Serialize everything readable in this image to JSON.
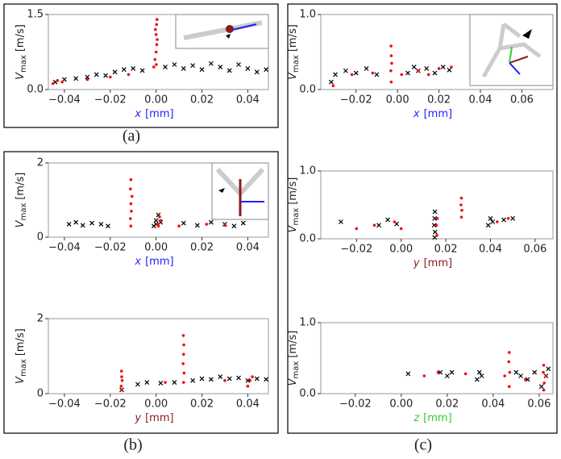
{
  "panel_labels": [
    "(a)",
    "(b)",
    "(c)"
  ],
  "chart_data": [
    {
      "type": "scatter",
      "ylabel_symbol": "V",
      "ylabel_subscript": "max",
      "ylabel_unit": "[m/s]",
      "xlabel_var": "x",
      "xlabel_unit": "[mm]",
      "xlabel_color": "#1f1fff",
      "xlim": [
        -0.047,
        0.049
      ],
      "ylim": [
        0,
        1.5
      ],
      "xticks": [
        {
          "value": -0.04,
          "label": "−0.04"
        },
        {
          "value": -0.02,
          "label": "−0.02"
        },
        {
          "value": 0,
          "label": "0.00"
        },
        {
          "value": 0.02,
          "label": "0.02"
        },
        {
          "value": 0.04,
          "label": "0.04"
        }
      ],
      "yticks": [
        {
          "value": 0,
          "label": "0.0"
        },
        {
          "value": 1.5,
          "label": "1.5"
        }
      ],
      "series": [
        {
          "color": "#000000",
          "marker": "x",
          "x": [
            -0.044,
            -0.04,
            -0.035,
            -0.03,
            -0.026,
            -0.022,
            -0.018,
            -0.014,
            -0.01,
            -0.006,
            0.004,
            0.008,
            0.012,
            0.016,
            0.02,
            0.024,
            0.028,
            0.032,
            0.036,
            0.04,
            0.044,
            0.048
          ],
          "values": [
            0.15,
            0.2,
            0.22,
            0.25,
            0.3,
            0.28,
            0.35,
            0.4,
            0.42,
            0.38,
            0.45,
            0.5,
            0.42,
            0.48,
            0.4,
            0.52,
            0.45,
            0.38,
            0.5,
            0.42,
            0.35,
            0.4
          ]
        },
        {
          "color": "#ee1111",
          "marker": "dot",
          "x": [
            -0.045,
            -0.043,
            -0.041,
            -0.03,
            -0.02,
            -0.012,
            -0.001,
            -0.0005,
            0,
            0.0003,
            0.0005,
            0,
            -0.0003,
            0.0002,
            0.0004,
            0.0001
          ],
          "values": [
            0.12,
            0.18,
            0.15,
            0.2,
            0.25,
            0.3,
            0.45,
            0.6,
            0.75,
            0.9,
            1.0,
            1.1,
            1.2,
            1.3,
            1.4,
            0.5
          ]
        }
      ]
    },
    {
      "type": "scatter",
      "ylabel_symbol": "V",
      "ylabel_subscript": "max",
      "ylabel_unit": "[m/s]",
      "xlabel_var": "x",
      "xlabel_unit": "[mm]",
      "xlabel_color": "#1f1fff",
      "xlim": [
        -0.047,
        0.049
      ],
      "ylim": [
        0,
        2
      ],
      "xticks": [
        {
          "value": -0.04,
          "label": "−0.04"
        },
        {
          "value": -0.02,
          "label": "−0.02"
        },
        {
          "value": 0,
          "label": "0.00"
        },
        {
          "value": 0.02,
          "label": "0.02"
        },
        {
          "value": 0.04,
          "label": "0.04"
        }
      ],
      "yticks": [
        0,
        2
      ],
      "series": [
        {
          "color": "#000000",
          "marker": "x",
          "x": [
            -0.038,
            -0.035,
            -0.032,
            -0.028,
            -0.024,
            -0.021,
            -0.001,
            0,
            0.001,
            0.002,
            0,
            0.012,
            0.018,
            0.024,
            0.03,
            0.034,
            0.038
          ],
          "values": [
            0.35,
            0.4,
            0.32,
            0.38,
            0.35,
            0.3,
            0.3,
            0.45,
            0.6,
            0.4,
            0.35,
            0.38,
            0.32,
            0.4,
            0.35,
            0.3,
            0.38
          ]
        },
        {
          "color": "#ee1111",
          "marker": "dot",
          "x": [
            -0.011,
            -0.0112,
            -0.0108,
            -0.011,
            -0.0105,
            -0.0112,
            -0.011,
            0.001,
            0.002,
            0.0015,
            0.0005,
            0.01,
            0.022,
            0.03
          ],
          "values": [
            0.3,
            0.5,
            0.7,
            0.9,
            1.1,
            1.3,
            1.55,
            0.3,
            0.45,
            0.55,
            0.35,
            0.3,
            0.35,
            0.32
          ]
        }
      ]
    },
    {
      "type": "scatter",
      "ylabel_symbol": "V",
      "ylabel_subscript": "max",
      "ylabel_unit": "[m/s]",
      "xlabel_var": "y",
      "xlabel_unit": "[mm]",
      "xlabel_color": "#8b1a1a",
      "xlim": [
        -0.047,
        0.049
      ],
      "ylim": [
        0,
        2
      ],
      "xticks": [
        {
          "value": -0.04,
          "label": "−0.04"
        },
        {
          "value": -0.02,
          "label": "−0.02"
        },
        {
          "value": 0,
          "label": "0.00"
        },
        {
          "value": 0.02,
          "label": "0.02"
        },
        {
          "value": 0.04,
          "label": "0.04"
        }
      ],
      "yticks": [
        0,
        2
      ],
      "series": [
        {
          "color": "#000000",
          "marker": "x",
          "x": [
            -0.015,
            -0.008,
            -0.004,
            0.002,
            0.008,
            0.016,
            0.02,
            0.024,
            0.028,
            0.032,
            0.036,
            0.04,
            0.044,
            0.048
          ],
          "values": [
            0.1,
            0.25,
            0.3,
            0.28,
            0.3,
            0.35,
            0.4,
            0.38,
            0.45,
            0.4,
            0.42,
            0.35,
            0.4,
            0.38
          ]
        },
        {
          "color": "#ee1111",
          "marker": "dot",
          "x": [
            -0.015,
            -0.0152,
            -0.0148,
            -0.015,
            -0.0151,
            0.012,
            0.0122,
            0.0118,
            0.012,
            0.0121,
            0.0119,
            0.004,
            0.03,
            0.04,
            0.041,
            0.042
          ],
          "values": [
            0.1,
            0.2,
            0.35,
            0.45,
            0.6,
            0.3,
            0.55,
            0.8,
            1.05,
            1.3,
            1.55,
            0.3,
            0.35,
            0.2,
            0.35,
            0.45
          ]
        }
      ]
    },
    {
      "type": "scatter",
      "ylabel_symbol": "V",
      "ylabel_subscript": "max",
      "ylabel_unit": "[m/s]",
      "xlabel_var": "x",
      "xlabel_unit": "[mm]",
      "xlabel_color": "#1f1fff",
      "xlim": [
        -0.037,
        0.075
      ],
      "ylim": [
        0,
        1.0
      ],
      "xticks": [
        {
          "value": -0.02,
          "label": "−0.02"
        },
        {
          "value": 0,
          "label": "0.00"
        },
        {
          "value": 0.02,
          "label": "0.02"
        },
        {
          "value": 0.04,
          "label": "0.04"
        },
        {
          "value": 0.06,
          "label": "0.06"
        }
      ],
      "yticks": [
        {
          "value": 0,
          "label": "0.0"
        },
        {
          "value": 1.0,
          "label": "1.0"
        }
      ],
      "series": [
        {
          "color": "#000000",
          "marker": "x",
          "x": [
            -0.032,
            -0.03,
            -0.025,
            -0.02,
            -0.015,
            -0.01,
            0.005,
            0.008,
            0.01,
            0.014,
            0.018,
            0.022,
            0.025
          ],
          "values": [
            0.1,
            0.2,
            0.25,
            0.22,
            0.28,
            0.2,
            0.22,
            0.3,
            0.25,
            0.28,
            0.22,
            0.3,
            0.26
          ]
        },
        {
          "color": "#ee1111",
          "marker": "dot",
          "x": [
            -0.031,
            -0.022,
            -0.012,
            -0.003,
            -0.0032,
            -0.0028,
            -0.003,
            -0.0031,
            0.002,
            0.01,
            0.015,
            0.02,
            0.026
          ],
          "values": [
            0.05,
            0.2,
            0.22,
            0.1,
            0.25,
            0.35,
            0.45,
            0.58,
            0.2,
            0.25,
            0.2,
            0.28,
            0.3
          ]
        }
      ]
    },
    {
      "type": "scatter",
      "ylabel_symbol": "V",
      "ylabel_subscript": "max",
      "ylabel_unit": "[m/s]",
      "xlabel_var": "y",
      "xlabel_unit": "[mm]",
      "xlabel_color": "#8b1a1a",
      "xlim": [
        -0.036,
        0.068
      ],
      "ylim": [
        0,
        1.0
      ],
      "xticks": [
        {
          "value": -0.02,
          "label": "−0.02"
        },
        {
          "value": 0,
          "label": "0.00"
        },
        {
          "value": 0.02,
          "label": "0.02"
        },
        {
          "value": 0.04,
          "label": "0.04"
        },
        {
          "value": 0.06,
          "label": "0.06"
        }
      ],
      "yticks": [
        {
          "value": 0,
          "label": "0.0"
        },
        {
          "value": 1.0,
          "label": "1.0"
        }
      ],
      "series": [
        {
          "color": "#000000",
          "marker": "x",
          "x": [
            -0.027,
            -0.01,
            -0.006,
            -0.002,
            0.015,
            0.0152,
            0.0148,
            0.015,
            0.0151,
            0.039,
            0.04,
            0.041,
            0.046,
            0.05
          ],
          "values": [
            0.25,
            0.2,
            0.28,
            0.22,
            0.02,
            0.1,
            0.2,
            0.3,
            0.4,
            0.2,
            0.3,
            0.25,
            0.28,
            0.3
          ]
        },
        {
          "color": "#ee1111",
          "marker": "dot",
          "x": [
            -0.02,
            -0.012,
            -0.003,
            0.0,
            0.016,
            0.0158,
            0.0162,
            0.027,
            0.0272,
            0.0268,
            0.027,
            0.043,
            0.048
          ],
          "values": [
            0.15,
            0.2,
            0.25,
            0.15,
            0.05,
            0.2,
            0.3,
            0.32,
            0.42,
            0.5,
            0.6,
            0.25,
            0.3
          ]
        }
      ]
    },
    {
      "type": "scatter",
      "ylabel_symbol": "V",
      "ylabel_subscript": "max",
      "ylabel_unit": "[m/s]",
      "xlabel_var": "z",
      "xlabel_unit": "[mm]",
      "xlabel_color": "#33cc33",
      "xlim": [
        -0.035,
        0.066
      ],
      "ylim": [
        0,
        1.0
      ],
      "xticks": [
        {
          "value": -0.02,
          "label": "−0.02"
        },
        {
          "value": 0,
          "label": "0.00"
        },
        {
          "value": 0.02,
          "label": "0.02"
        },
        {
          "value": 0.04,
          "label": "0.04"
        },
        {
          "value": 0.06,
          "label": "0.06"
        }
      ],
      "yticks": [
        {
          "value": 0,
          "label": "0.0"
        },
        {
          "value": 1.0,
          "label": "1.0"
        }
      ],
      "series": [
        {
          "color": "#000000",
          "marker": "x",
          "x": [
            0.003,
            0.017,
            0.02,
            0.022,
            0.033,
            0.034,
            0.035,
            0.05,
            0.052,
            0.055,
            0.058,
            0.061,
            0.063,
            0.064
          ],
          "values": [
            0.28,
            0.3,
            0.25,
            0.3,
            0.2,
            0.3,
            0.25,
            0.3,
            0.25,
            0.2,
            0.3,
            0.1,
            0.25,
            0.35
          ]
        },
        {
          "color": "#ee1111",
          "marker": "dot",
          "x": [
            0.01,
            0.016,
            0.028,
            0.045,
            0.047,
            0.0472,
            0.0468,
            0.047,
            0.054,
            0.062,
            0.0622,
            0.0618,
            0.062,
            0.063
          ],
          "values": [
            0.25,
            0.3,
            0.28,
            0.25,
            0.1,
            0.3,
            0.45,
            0.58,
            0.2,
            0.05,
            0.15,
            0.3,
            0.4,
            0.25
          ]
        }
      ]
    }
  ]
}
